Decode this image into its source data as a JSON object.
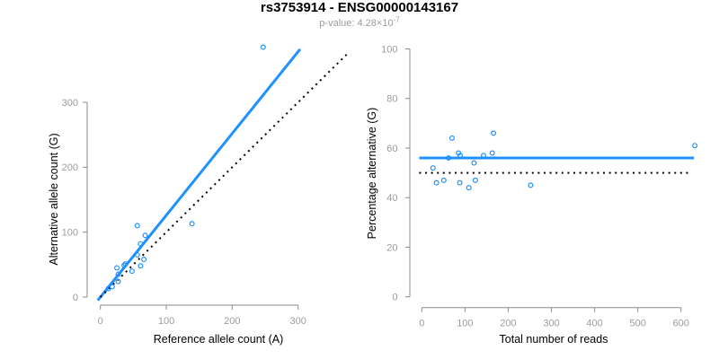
{
  "title": "rs3753914 - ENSG00000143167",
  "subtitle": {
    "prefix": "p-value: 4.28×10",
    "exponent": "-7"
  },
  "colors": {
    "accent_blue": "#1E90FF",
    "line_black": "#000000",
    "axis_gray": "#8a8a8a",
    "tick_gray": "#9c9c9c",
    "subtitle_gray": "#9b9b9b"
  },
  "chart_data": [
    {
      "type": "scatter",
      "xlabel": "Reference allele count (A)",
      "ylabel": "Alternative allele count (G)",
      "xticks": [
        0,
        100,
        200,
        300
      ],
      "yticks": [
        0,
        100,
        200,
        300
      ],
      "xlim": [
        0,
        300
      ],
      "ylim": [
        0,
        300
      ],
      "grid": false,
      "legend": false,
      "points": [
        [
          12,
          13
        ],
        [
          18,
          16
        ],
        [
          27,
          24
        ],
        [
          27,
          35
        ],
        [
          25,
          45
        ],
        [
          36,
          49
        ],
        [
          38,
          51
        ],
        [
          48,
          40
        ],
        [
          61,
          48
        ],
        [
          56,
          65
        ],
        [
          66,
          58
        ],
        [
          61,
          82
        ],
        [
          68,
          95
        ],
        [
          56,
          110
        ],
        [
          139,
          113
        ],
        [
          247,
          385
        ]
      ],
      "fit_line": {
        "slope": 1.26,
        "style": "solid",
        "color": "blue"
      },
      "identity_line": {
        "slope": 1,
        "style": "dotted",
        "color": "black"
      }
    },
    {
      "type": "scatter",
      "xlabel": "Total number of reads",
      "ylabel": "Percentage alternative (G)",
      "xticks": [
        0,
        100,
        200,
        300,
        400,
        500,
        600
      ],
      "yticks": [
        0,
        20,
        40,
        60,
        80,
        100
      ],
      "xlim": [
        0,
        600
      ],
      "ylim": [
        0,
        100
      ],
      "grid": false,
      "legend": false,
      "points": [
        [
          26,
          52
        ],
        [
          34,
          46
        ],
        [
          51,
          47
        ],
        [
          62,
          56
        ],
        [
          70,
          64
        ],
        [
          85,
          58
        ],
        [
          89,
          57
        ],
        [
          88,
          46
        ],
        [
          109,
          44
        ],
        [
          121,
          54
        ],
        [
          124,
          47
        ],
        [
          143,
          57
        ],
        [
          163,
          58
        ],
        [
          166,
          66
        ],
        [
          252,
          45
        ],
        [
          632,
          61
        ]
      ],
      "fit_line": {
        "value": 56,
        "style": "solid",
        "color": "blue"
      },
      "null_line": {
        "value": 50,
        "style": "dotted",
        "color": "black"
      }
    }
  ]
}
